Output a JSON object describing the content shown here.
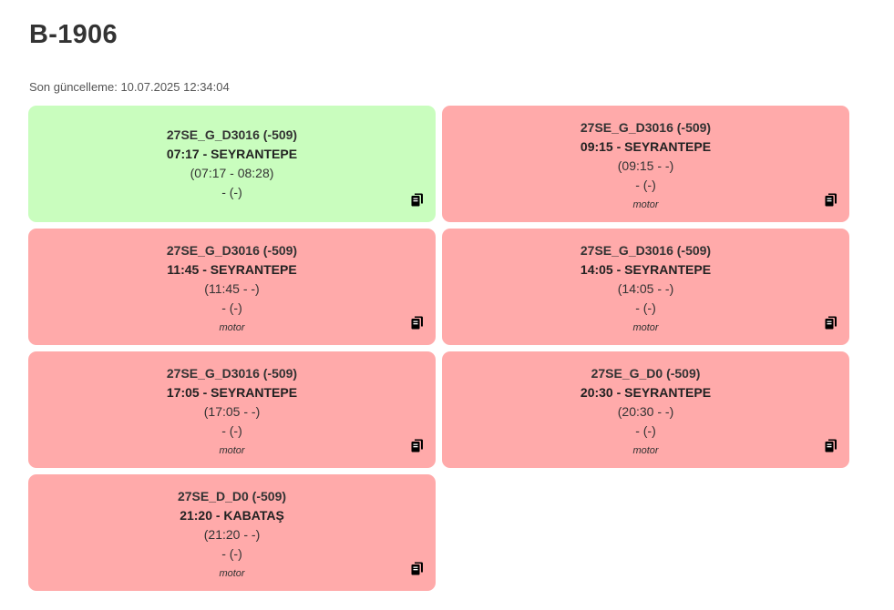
{
  "header": {
    "title": "B-1906",
    "last_update": "Son güncelleme: 10.07.2025 12:34:04"
  },
  "colors": {
    "ok": "#c9fdbe",
    "bad": "#ffaaaa"
  },
  "cards": [
    {
      "status": "ok",
      "route": "27SE_G_D3016 (-509)",
      "trip": "07:17 - SEYRANTEPE",
      "times": "(07:17 - 08:28)",
      "extra": "- (-)",
      "note": "",
      "icon": "copy-icon"
    },
    {
      "status": "bad",
      "route": "27SE_G_D3016 (-509)",
      "trip": "09:15 - SEYRANTEPE",
      "times": "(09:15 - -)",
      "extra": "- (-)",
      "note": "motor",
      "icon": "copy-icon"
    },
    {
      "status": "bad",
      "route": "27SE_G_D3016 (-509)",
      "trip": "11:45 - SEYRANTEPE",
      "times": "(11:45 - -)",
      "extra": "- (-)",
      "note": "motor",
      "icon": "copy-icon"
    },
    {
      "status": "bad",
      "route": "27SE_G_D3016 (-509)",
      "trip": "14:05 - SEYRANTEPE",
      "times": "(14:05 - -)",
      "extra": "- (-)",
      "note": "motor",
      "icon": "copy-icon"
    },
    {
      "status": "bad",
      "route": "27SE_G_D3016 (-509)",
      "trip": "17:05 - SEYRANTEPE",
      "times": "(17:05 - -)",
      "extra": "- (-)",
      "note": "motor",
      "icon": "copy-icon"
    },
    {
      "status": "bad",
      "route": "27SE_G_D0 (-509)",
      "trip": "20:30 - SEYRANTEPE",
      "times": "(20:30 - -)",
      "extra": "- (-)",
      "note": "motor",
      "icon": "copy-icon"
    },
    {
      "status": "bad",
      "route": "27SE_D_D0 (-509)",
      "trip": "21:20 - KABATAŞ",
      "times": "(21:20 - -)",
      "extra": "- (-)",
      "note": "motor",
      "icon": "copy-icon"
    }
  ]
}
